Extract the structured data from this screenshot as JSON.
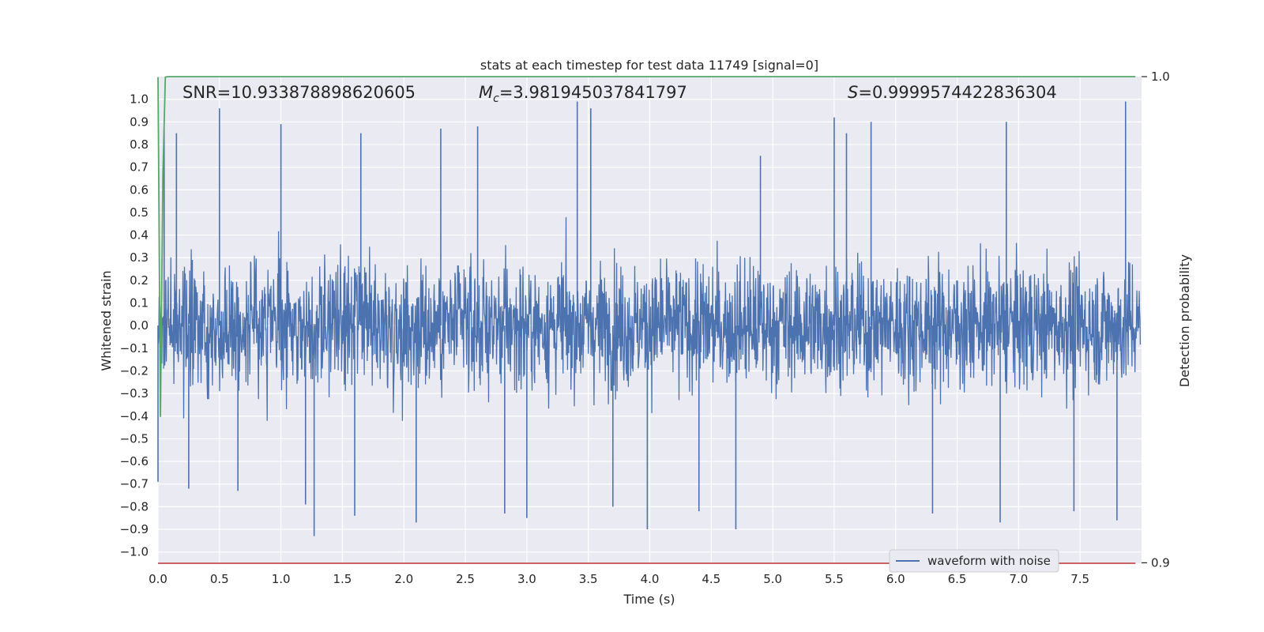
{
  "chart_data": {
    "type": "line",
    "title": "stats at each timestep for test data 11749 [signal=0]",
    "xlabel": "Time (s)",
    "ylabel": "Whitened strain",
    "ylabel_right": "Detection probability",
    "xlim": [
      0.0,
      8.0
    ],
    "ylim": [
      -1.05,
      1.1
    ],
    "ylim_right": [
      0.8999,
      1.0
    ],
    "x_ticks": [
      "0.0",
      "0.5",
      "1.0",
      "1.5",
      "2.0",
      "2.5",
      "3.0",
      "3.5",
      "4.0",
      "4.5",
      "5.0",
      "5.5",
      "6.0",
      "6.5",
      "7.0",
      "7.5"
    ],
    "y_ticks": [
      "1.0",
      "0.9",
      "0.8",
      "0.7",
      "0.6",
      "0.5",
      "0.4",
      "0.3",
      "0.2",
      "0.1",
      "0.0",
      "−0.1",
      "−0.2",
      "−0.3",
      "−0.4",
      "−0.5",
      "−0.6",
      "−0.7",
      "−0.8",
      "−0.9",
      "−1.0"
    ],
    "y_ticks_right": [
      "1.0",
      "0.9"
    ],
    "annotations": {
      "snr": "SNR=10.933878898620605",
      "mc_symbol": "M",
      "mc_subscript": "c",
      "mc_value": "=3.981945037841797",
      "s_symbol": "S",
      "s_value": "=0.9999574422836304"
    },
    "grid": true,
    "legend_placement": "lower-right",
    "series": [
      {
        "name": "waveform with noise",
        "color": "#4c72b0",
        "axis": "left",
        "x_range": [
          0.0,
          7.99
        ],
        "typical_amplitude": 0.35,
        "min": -0.93,
        "max": 0.99,
        "spikes": [
          {
            "x": 0.0,
            "y": -0.69
          },
          {
            "x": 0.05,
            "y": 0.87
          },
          {
            "x": 0.15,
            "y": 0.85
          },
          {
            "x": 0.25,
            "y": -0.72
          },
          {
            "x": 0.5,
            "y": 0.96
          },
          {
            "x": 0.65,
            "y": -0.73
          },
          {
            "x": 1.0,
            "y": 0.89
          },
          {
            "x": 1.2,
            "y": -0.79
          },
          {
            "x": 1.27,
            "y": -0.93
          },
          {
            "x": 1.6,
            "y": -0.84
          },
          {
            "x": 1.65,
            "y": 0.85
          },
          {
            "x": 2.1,
            "y": -0.87
          },
          {
            "x": 2.3,
            "y": 0.87
          },
          {
            "x": 2.6,
            "y": 0.88
          },
          {
            "x": 2.82,
            "y": -0.83
          },
          {
            "x": 3.0,
            "y": -0.85
          },
          {
            "x": 3.41,
            "y": 0.99
          },
          {
            "x": 3.52,
            "y": 0.96
          },
          {
            "x": 3.7,
            "y": -0.8
          },
          {
            "x": 3.98,
            "y": -0.9
          },
          {
            "x": 4.4,
            "y": -0.82
          },
          {
            "x": 4.7,
            "y": -0.9
          },
          {
            "x": 4.9,
            "y": 0.75
          },
          {
            "x": 5.5,
            "y": 0.92
          },
          {
            "x": 5.6,
            "y": 0.85
          },
          {
            "x": 5.8,
            "y": 0.9
          },
          {
            "x": 6.3,
            "y": -0.83
          },
          {
            "x": 6.85,
            "y": -0.87
          },
          {
            "x": 6.9,
            "y": 0.9
          },
          {
            "x": 7.45,
            "y": -0.82
          },
          {
            "x": 7.8,
            "y": -0.86
          },
          {
            "x": 7.87,
            "y": 0.99
          }
        ]
      },
      {
        "name": "",
        "color": "#55a868",
        "axis": "right",
        "x": [
          0.0,
          0.02,
          0.04,
          0.06,
          0.08,
          7.95
        ],
        "y": [
          0.9999,
          0.93,
          0.98,
          0.9999,
          1.0,
          1.0
        ]
      },
      {
        "name": "",
        "color": "#c44e52",
        "axis": "right",
        "x": [
          0.0,
          7.95
        ],
        "y": [
          0.8999,
          0.8999
        ]
      }
    ]
  }
}
